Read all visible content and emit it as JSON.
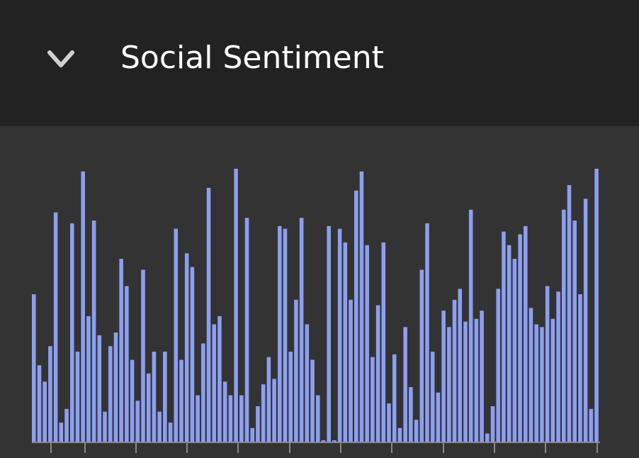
{
  "header": {
    "title": "Social Sentiment",
    "toggle_icon": "chevron-down-icon"
  },
  "colors": {
    "header_bg": "#222222",
    "panel_bg": "#333333",
    "bar": "#8c9ff0",
    "axis": "#888888",
    "title": "#ffffff",
    "chevron": "#d0d0d0"
  },
  "chart_data": {
    "type": "bar",
    "title": "",
    "xlabel": "",
    "ylabel": "",
    "ylim": [
      0,
      100
    ],
    "grid": false,
    "legend": "none",
    "x_ticks_count": 12,
    "values": [
      54,
      28,
      22,
      35,
      84,
      7,
      12,
      80,
      33,
      99,
      46,
      81,
      39,
      11,
      35,
      40,
      67,
      57,
      30,
      15,
      63,
      25,
      33,
      11,
      33,
      7,
      78,
      30,
      69,
      64,
      17,
      36,
      93,
      43,
      46,
      22,
      17,
      100,
      17,
      82,
      5,
      13,
      21,
      31,
      23,
      79,
      78,
      33,
      52,
      82,
      43,
      30,
      17,
      0,
      79,
      0,
      78,
      73,
      52,
      92,
      99,
      72,
      31,
      50,
      73,
      14,
      32,
      5,
      42,
      20,
      8,
      63,
      80,
      33,
      18,
      48,
      42,
      52,
      56,
      44,
      85,
      45,
      48,
      3,
      13,
      56,
      77,
      72,
      67,
      76,
      79,
      49,
      43,
      42,
      57,
      45,
      55,
      85,
      94,
      81,
      54,
      89,
      12,
      100
    ]
  }
}
